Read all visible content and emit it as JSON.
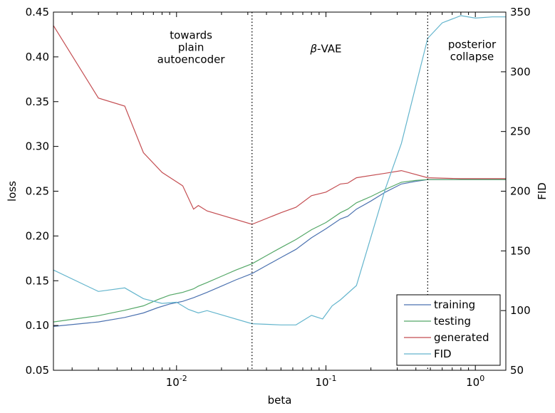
{
  "chart_data": {
    "type": "line",
    "xscale": "log",
    "xlim": [
      0.0015,
      1.6
    ],
    "xlabel": "beta",
    "ylabel_left": "loss",
    "ylabel_right": "FID",
    "ylim_left": [
      0.05,
      0.45
    ],
    "ylim_right": [
      50,
      350
    ],
    "x_ticks": [
      {
        "value": 0.01,
        "base": "10",
        "exp": "-2"
      },
      {
        "value": 0.1,
        "base": "10",
        "exp": "-1"
      },
      {
        "value": 1,
        "base": "10",
        "exp": "0"
      }
    ],
    "y_ticks_left": [
      "0.05",
      "0.10",
      "0.15",
      "0.20",
      "0.25",
      "0.30",
      "0.35",
      "0.40",
      "0.45"
    ],
    "y_ticks_right": [
      "50",
      "100",
      "150",
      "200",
      "250",
      "300",
      "350"
    ],
    "vlines": [
      0.032,
      0.48
    ],
    "annotations": [
      {
        "lines": [
          "towards",
          "plain",
          "autoencoder"
        ],
        "x": 0.0125,
        "y": 0.42
      },
      {
        "lines": [
          "β-VAE"
        ],
        "x": 0.1,
        "y": 0.405
      },
      {
        "lines": [
          "posterior",
          "collapse"
        ],
        "x": 0.95,
        "y": 0.41
      }
    ],
    "series": [
      {
        "name": "training",
        "color": "#4c72b0",
        "axis": "left",
        "x": [
          0.0015,
          0.003,
          0.0045,
          0.006,
          0.0075,
          0.009,
          0.011,
          0.013,
          0.016,
          0.02,
          0.025,
          0.032,
          0.04,
          0.05,
          0.063,
          0.08,
          0.1,
          0.125,
          0.14,
          0.16,
          0.2,
          0.25,
          0.32,
          0.4,
          0.48,
          0.6,
          0.8,
          1.0,
          1.3,
          1.6
        ],
        "y": [
          0.099,
          0.104,
          0.109,
          0.114,
          0.12,
          0.124,
          0.127,
          0.131,
          0.137,
          0.144,
          0.151,
          0.158,
          0.167,
          0.176,
          0.185,
          0.198,
          0.208,
          0.219,
          0.222,
          0.23,
          0.239,
          0.249,
          0.258,
          0.261,
          0.263,
          0.263,
          0.263,
          0.263,
          0.263,
          0.263
        ]
      },
      {
        "name": "testing",
        "color": "#55a868",
        "axis": "left",
        "x": [
          0.0015,
          0.003,
          0.0045,
          0.006,
          0.0075,
          0.009,
          0.011,
          0.013,
          0.014,
          0.016,
          0.02,
          0.025,
          0.032,
          0.04,
          0.05,
          0.063,
          0.08,
          0.1,
          0.125,
          0.14,
          0.16,
          0.2,
          0.25,
          0.32,
          0.4,
          0.48,
          0.6,
          0.8,
          1.0,
          1.3,
          1.6
        ],
        "y": [
          0.104,
          0.111,
          0.117,
          0.122,
          0.129,
          0.134,
          0.137,
          0.141,
          0.144,
          0.148,
          0.155,
          0.162,
          0.169,
          0.178,
          0.187,
          0.196,
          0.207,
          0.215,
          0.226,
          0.23,
          0.237,
          0.244,
          0.252,
          0.26,
          0.262,
          0.263,
          0.263,
          0.263,
          0.263,
          0.263,
          0.263
        ]
      },
      {
        "name": "generated",
        "color": "#c44e52",
        "axis": "left",
        "x": [
          0.0015,
          0.003,
          0.0045,
          0.006,
          0.008,
          0.011,
          0.013,
          0.014,
          0.016,
          0.032,
          0.05,
          0.063,
          0.08,
          0.1,
          0.125,
          0.14,
          0.16,
          0.25,
          0.32,
          0.48,
          0.8,
          1.0,
          1.6
        ],
        "y": [
          0.435,
          0.354,
          0.345,
          0.293,
          0.271,
          0.256,
          0.23,
          0.234,
          0.228,
          0.213,
          0.226,
          0.232,
          0.245,
          0.249,
          0.258,
          0.259,
          0.265,
          0.27,
          0.273,
          0.265,
          0.264,
          0.264,
          0.264
        ]
      },
      {
        "name": "FID",
        "color": "#64b5cd",
        "axis": "right",
        "x": [
          0.0015,
          0.003,
          0.0045,
          0.006,
          0.008,
          0.01,
          0.012,
          0.014,
          0.016,
          0.032,
          0.05,
          0.063,
          0.08,
          0.095,
          0.11,
          0.125,
          0.16,
          0.25,
          0.32,
          0.48,
          0.6,
          0.8,
          1.0,
          1.3,
          1.6
        ],
        "y": [
          134,
          116,
          119,
          110,
          106,
          107,
          101,
          98,
          100,
          89,
          88,
          88,
          96,
          93,
          104,
          109,
          121,
          202,
          240,
          328,
          341,
          347,
          345,
          346,
          346
        ]
      }
    ],
    "legend": [
      "training",
      "testing",
      "generated",
      "FID"
    ],
    "legend_position": "bottom-right"
  }
}
